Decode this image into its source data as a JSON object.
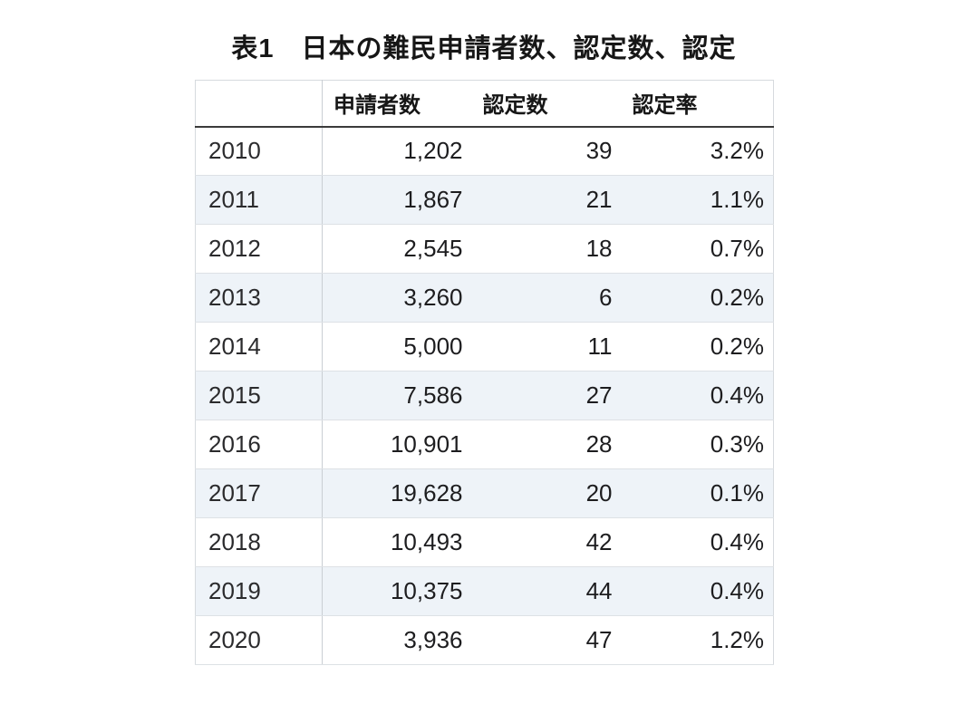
{
  "chart_data": {
    "type": "table",
    "title": "表1　日本の難民申請者数、認定数、認定",
    "columns": [
      "",
      "申請者数",
      "認定数",
      "認定率"
    ],
    "rows": [
      [
        "2010",
        "1,202",
        "39",
        "3.2%"
      ],
      [
        "2011",
        "1,867",
        "21",
        "1.1%"
      ],
      [
        "2012",
        "2,545",
        "18",
        "0.7%"
      ],
      [
        "2013",
        "3,260",
        "6",
        "0.2%"
      ],
      [
        "2014",
        "5,000",
        "11",
        "0.2%"
      ],
      [
        "2015",
        "7,586",
        "27",
        "0.4%"
      ],
      [
        "2016",
        "10,901",
        "28",
        "0.3%"
      ],
      [
        "2017",
        "19,628",
        "20",
        "0.1%"
      ],
      [
        "2018",
        "10,493",
        "42",
        "0.4%"
      ],
      [
        "2019",
        "10,375",
        "44",
        "0.4%"
      ],
      [
        "2020",
        "3,936",
        "47",
        "1.2%"
      ]
    ],
    "layout": {
      "legend": "none",
      "grid": "horizontal row separators",
      "alternating_row_shading": true
    },
    "colors": {
      "background": "#ffffff",
      "row_alt_background": "#eef3f8",
      "header_underline": "#3a3a3a",
      "row_separator": "#dde1e5",
      "text": "#1d1d1f"
    }
  }
}
